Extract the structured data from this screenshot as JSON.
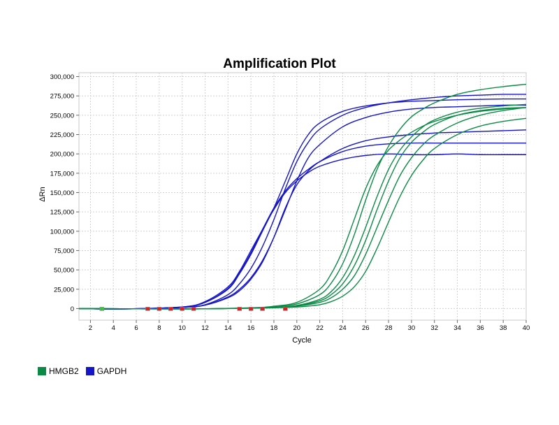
{
  "chart_data": {
    "type": "line",
    "title": "Amplification Plot",
    "xlabel": "Cycle",
    "ylabel": "ΔRn",
    "xlim": [
      1,
      40
    ],
    "ylim": [
      -15000,
      305000
    ],
    "x_ticks": [
      2,
      4,
      6,
      8,
      10,
      12,
      14,
      16,
      18,
      20,
      22,
      24,
      26,
      28,
      30,
      32,
      34,
      36,
      38,
      40
    ],
    "y_ticks": [
      0,
      25000,
      50000,
      75000,
      100000,
      125000,
      150000,
      175000,
      200000,
      225000,
      250000,
      275000,
      300000
    ],
    "y_tick_labels": [
      "0",
      "25,000",
      "50,000",
      "75,000",
      "100,000",
      "125,000",
      "150,000",
      "175,000",
      "200,000",
      "225,000",
      "250,000",
      "275,000",
      "300,000"
    ],
    "grid": true,
    "legend_position": "bottom-left",
    "colors": {
      "HMGB2": "#0a8a44",
      "GAPDH": "#1414c8"
    },
    "legend": [
      {
        "name": "HMGB2",
        "color": "#0a8a44"
      },
      {
        "name": "GAPDH",
        "color": "#1414c8"
      }
    ],
    "series": [
      {
        "group": "GAPDH",
        "x": [
          1,
          5,
          10,
          12,
          14,
          15,
          16,
          17,
          18,
          19,
          20,
          21,
          22,
          24,
          26,
          28,
          30,
          32,
          34,
          36,
          38,
          40
        ],
        "y": [
          0,
          -500,
          2000,
          8000,
          25000,
          45000,
          70000,
          100000,
          130000,
          165000,
          200000,
          225000,
          240000,
          255000,
          262000,
          266000,
          268000,
          269000,
          270000,
          270500,
          271000,
          271000
        ]
      },
      {
        "group": "GAPDH",
        "x": [
          1,
          5,
          10,
          12,
          14,
          15,
          16,
          17,
          18,
          19,
          20,
          21,
          22,
          24,
          26,
          28,
          30,
          32,
          34,
          36,
          38,
          40
        ],
        "y": [
          0,
          -500,
          1500,
          5000,
          18000,
          32000,
          52000,
          80000,
          115000,
          155000,
          190000,
          215000,
          232000,
          250000,
          260000,
          266000,
          270000,
          273000,
          275000,
          276000,
          277000,
          277000
        ]
      },
      {
        "group": "GAPDH",
        "x": [
          1,
          5,
          10,
          12,
          14,
          15,
          16,
          17,
          18,
          19,
          20,
          21,
          22,
          24,
          26,
          28,
          30,
          32,
          34,
          36,
          38,
          40
        ],
        "y": [
          0,
          -500,
          1500,
          4500,
          15000,
          25000,
          40000,
          62000,
          92000,
          128000,
          165000,
          195000,
          212000,
          235000,
          247000,
          254000,
          258000,
          260000,
          261000,
          262000,
          263000,
          263000
        ]
      },
      {
        "group": "GAPDH",
        "x": [
          1,
          5,
          10,
          12,
          14,
          15,
          16,
          17,
          18,
          19,
          20,
          21,
          22,
          24,
          26,
          28,
          30,
          32,
          34,
          36,
          38,
          40
        ],
        "y": [
          0,
          -500,
          2000,
          9000,
          28000,
          48000,
          75000,
          102000,
          128000,
          150000,
          165000,
          176000,
          184000,
          193000,
          198000,
          200000,
          199000,
          199000,
          200000,
          199000,
          199000,
          199000
        ]
      },
      {
        "group": "GAPDH",
        "x": [
          1,
          5,
          10,
          12,
          14,
          15,
          16,
          17,
          18,
          19,
          20,
          21,
          22,
          24,
          26,
          28,
          30,
          32,
          34,
          36,
          38,
          40
        ],
        "y": [
          0,
          -500,
          2000,
          8000,
          26000,
          46000,
          72000,
          102000,
          130000,
          152000,
          168000,
          180000,
          190000,
          203000,
          210000,
          213000,
          214000,
          214000,
          214000,
          214000,
          214000,
          214000
        ]
      },
      {
        "group": "GAPDH",
        "x": [
          1,
          5,
          10,
          12,
          14,
          15,
          16,
          17,
          18,
          19,
          20,
          21,
          22,
          24,
          26,
          28,
          30,
          32,
          34,
          36,
          38,
          40
        ],
        "y": [
          0,
          -500,
          1500,
          4500,
          14000,
          23000,
          38000,
          60000,
          92000,
          130000,
          160000,
          178000,
          190000,
          207000,
          217000,
          222000,
          225000,
          227000,
          228000,
          229000,
          230000,
          231000
        ]
      },
      {
        "group": "HMGB2",
        "x": [
          1,
          10,
          16,
          18,
          20,
          22,
          23,
          24,
          25,
          26,
          27,
          28,
          29,
          30,
          31,
          32,
          34,
          36,
          38,
          40
        ],
        "y": [
          0,
          -500,
          1000,
          3000,
          8000,
          25000,
          45000,
          75000,
          115000,
          155000,
          185000,
          205000,
          218000,
          228000,
          236000,
          242000,
          250000,
          255000,
          258000,
          260000
        ]
      },
      {
        "group": "HMGB2",
        "x": [
          1,
          10,
          16,
          18,
          20,
          22,
          23,
          24,
          25,
          26,
          27,
          28,
          29,
          30,
          31,
          32,
          34,
          36,
          38,
          40
        ],
        "y": [
          0,
          -500,
          800,
          2500,
          6000,
          18000,
          33000,
          58000,
          95000,
          140000,
          180000,
          210000,
          232000,
          248000,
          258000,
          266000,
          277000,
          283000,
          287000,
          290000
        ]
      },
      {
        "group": "HMGB2",
        "x": [
          1,
          10,
          16,
          18,
          20,
          22,
          23,
          24,
          25,
          26,
          27,
          28,
          29,
          30,
          31,
          32,
          34,
          36,
          38,
          40
        ],
        "y": [
          0,
          -500,
          600,
          1500,
          4000,
          12000,
          22000,
          40000,
          68000,
          105000,
          145000,
          180000,
          205000,
          222000,
          235000,
          244000,
          254000,
          259000,
          262000,
          264000
        ]
      },
      {
        "group": "HMGB2",
        "x": [
          1,
          10,
          16,
          18,
          20,
          22,
          23,
          24,
          25,
          26,
          27,
          28,
          29,
          30,
          31,
          32,
          34,
          36,
          38,
          40
        ],
        "y": [
          0,
          -500,
          600,
          1500,
          3500,
          10000,
          18000,
          32000,
          55000,
          88000,
          128000,
          165000,
          195000,
          215000,
          228000,
          238000,
          250000,
          256000,
          259000,
          260000
        ]
      },
      {
        "group": "HMGB2",
        "x": [
          1,
          10,
          16,
          18,
          20,
          22,
          23,
          24,
          25,
          26,
          27,
          28,
          29,
          30,
          31,
          32,
          34,
          36,
          38,
          40
        ],
        "y": [
          0,
          -500,
          500,
          1200,
          3000,
          8000,
          14000,
          25000,
          42000,
          70000,
          105000,
          140000,
          172000,
          195000,
          212000,
          224000,
          240000,
          250000,
          256000,
          260000
        ]
      },
      {
        "group": "HMGB2",
        "x": [
          1,
          10,
          16,
          18,
          20,
          22,
          23,
          24,
          25,
          26,
          27,
          28,
          29,
          30,
          31,
          32,
          34,
          36,
          38,
          40
        ],
        "y": [
          0,
          -500,
          400,
          1000,
          2000,
          5000,
          9000,
          16000,
          28000,
          48000,
          78000,
          112000,
          145000,
          172000,
          192000,
          207000,
          225000,
          236000,
          242000,
          246000
        ]
      }
    ],
    "baseline_markers": [
      {
        "x": 3,
        "color": "#32c832"
      },
      {
        "x": 7,
        "color": "#e02020"
      },
      {
        "x": 8,
        "color": "#e02020"
      },
      {
        "x": 9,
        "color": "#e02020"
      },
      {
        "x": 10,
        "color": "#e02020"
      },
      {
        "x": 11,
        "color": "#e02020"
      },
      {
        "x": 15,
        "color": "#e02020"
      },
      {
        "x": 16,
        "color": "#e02020"
      },
      {
        "x": 17,
        "color": "#e02020"
      },
      {
        "x": 19,
        "color": "#e02020"
      }
    ]
  }
}
